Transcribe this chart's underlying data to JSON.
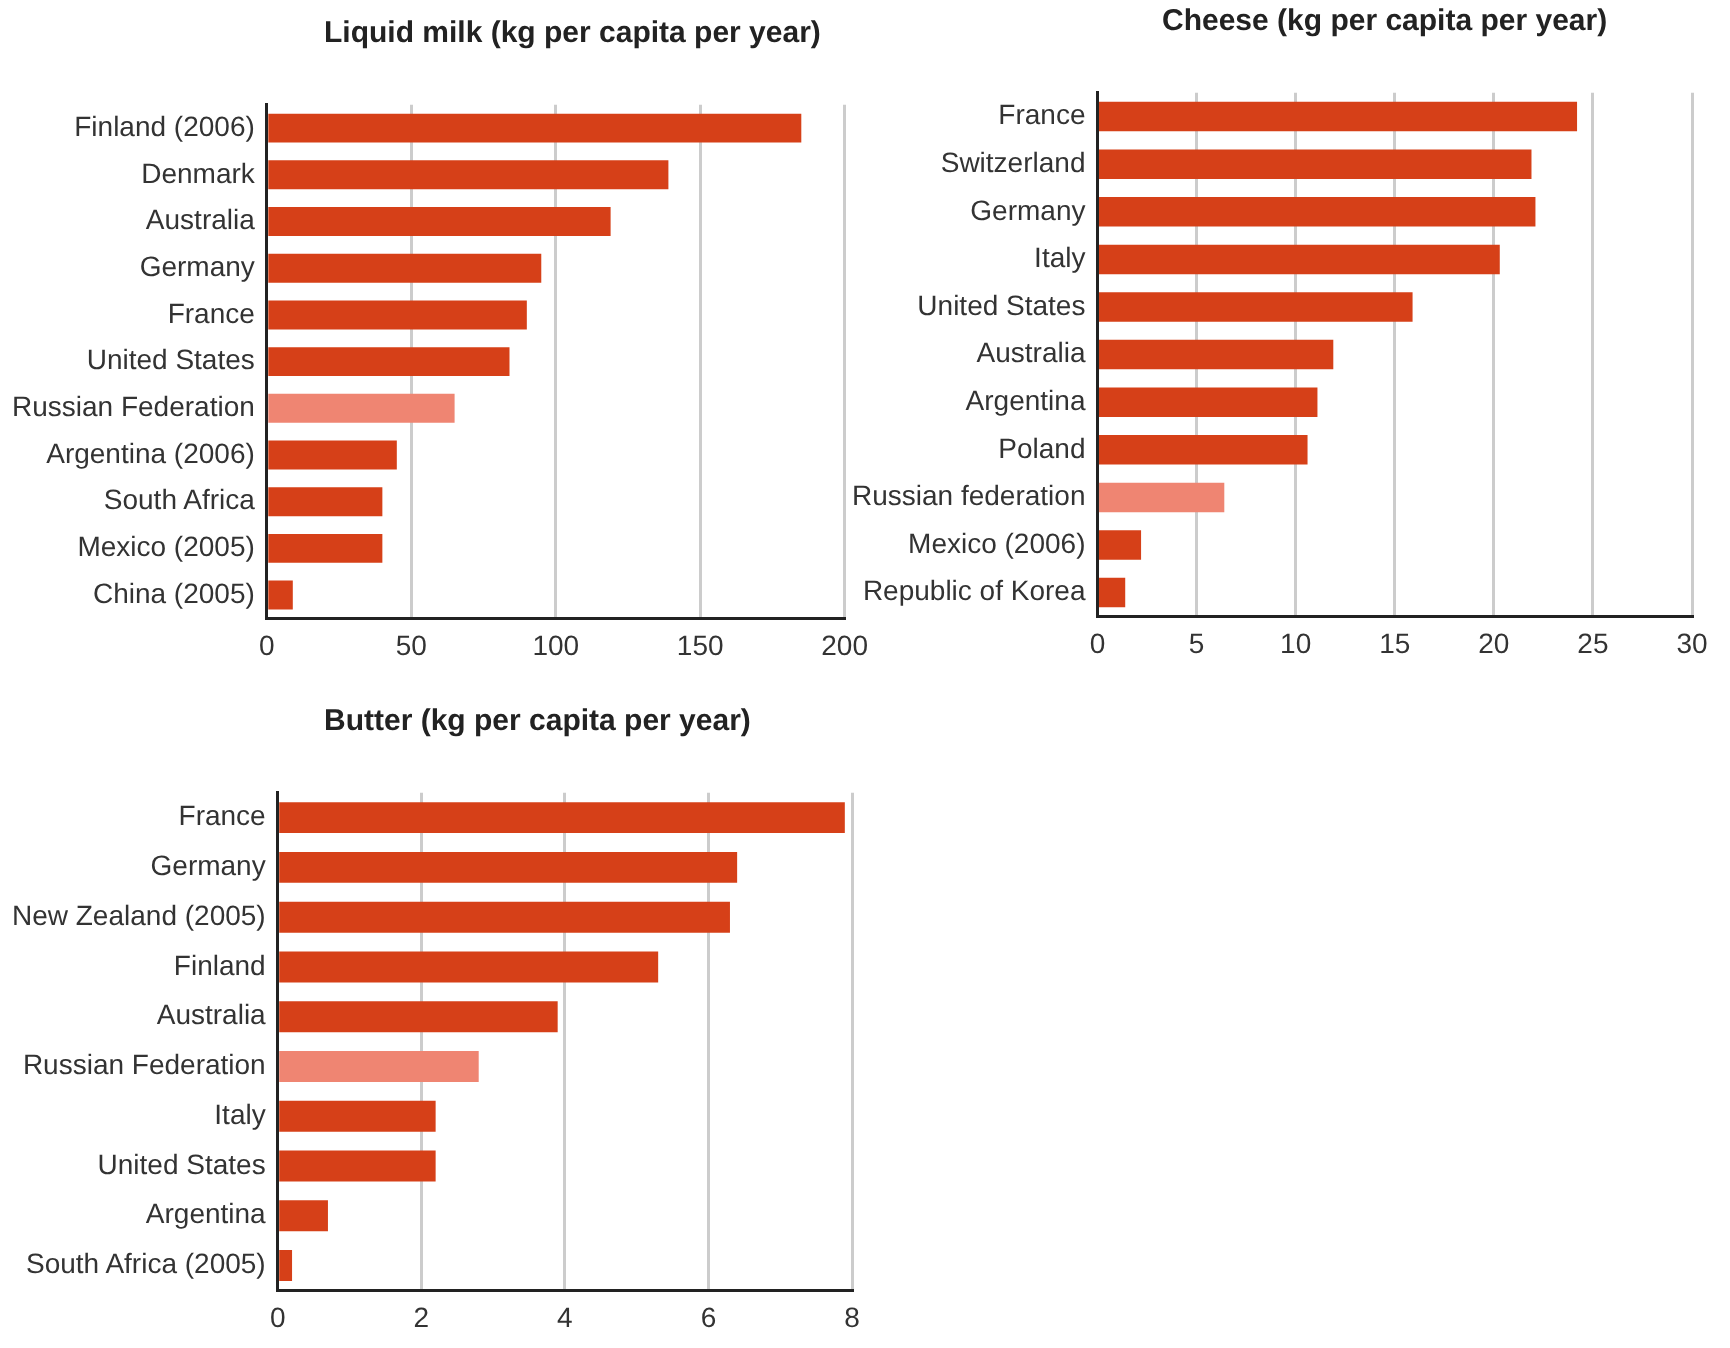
{
  "chart_data": [
    {
      "type": "bar",
      "orientation": "horizontal",
      "title": "Liquid milk (kg per capita per year)",
      "categories": [
        "Finland (2006)",
        "Denmark",
        "Australia",
        "Germany",
        "France",
        "United States",
        "Russian Federation",
        "Argentina (2006)",
        "South Africa",
        "Mexico (2005)",
        "China (2005)"
      ],
      "values": [
        185,
        139,
        119,
        95,
        90,
        84,
        65,
        45,
        40,
        40,
        9
      ],
      "colors": [
        "#d64018",
        "#d64018",
        "#d64018",
        "#d64018",
        "#d64018",
        "#d64018",
        "#ef8572",
        "#d64018",
        "#d64018",
        "#d64018",
        "#d64018"
      ],
      "xlim": [
        0,
        200
      ],
      "xticks": [
        0,
        50,
        100,
        150,
        200
      ],
      "grid": "x"
    },
    {
      "type": "bar",
      "orientation": "horizontal",
      "title": "Cheese (kg per capita per year)",
      "categories": [
        "France",
        "Switzerland",
        "Germany",
        "Italy",
        "United States",
        "Australia",
        "Argentina",
        "Poland",
        "Russian federation",
        "Mexico (2006)",
        "Republic of Korea"
      ],
      "values": [
        24.2,
        21.9,
        22.1,
        20.3,
        15.9,
        11.9,
        11.1,
        10.6,
        6.4,
        2.2,
        1.4
      ],
      "colors": [
        "#d64018",
        "#d64018",
        "#d64018",
        "#d64018",
        "#d64018",
        "#d64018",
        "#d64018",
        "#d64018",
        "#ef8572",
        "#d64018",
        "#d64018"
      ],
      "xlim": [
        0,
        30
      ],
      "xticks": [
        0,
        5,
        10,
        15,
        20,
        25,
        30
      ],
      "grid": "x"
    },
    {
      "type": "bar",
      "orientation": "horizontal",
      "title": "Butter (kg per capita per year)",
      "categories": [
        "France",
        "Germany",
        "New Zealand (2005)",
        "Finland",
        "Australia",
        "Russian Federation",
        "Italy",
        "United States",
        "Argentina",
        "South Africa (2005)"
      ],
      "values": [
        7.9,
        6.4,
        6.3,
        5.3,
        3.9,
        2.8,
        2.2,
        2.2,
        0.7,
        0.2
      ],
      "colors": [
        "#d64018",
        "#d64018",
        "#d64018",
        "#d64018",
        "#d64018",
        "#ef8572",
        "#d64018",
        "#d64018",
        "#d64018",
        "#d64018"
      ],
      "xlim": [
        0,
        8
      ],
      "xticks": [
        0,
        2,
        4,
        6,
        8
      ],
      "grid": "x"
    }
  ]
}
